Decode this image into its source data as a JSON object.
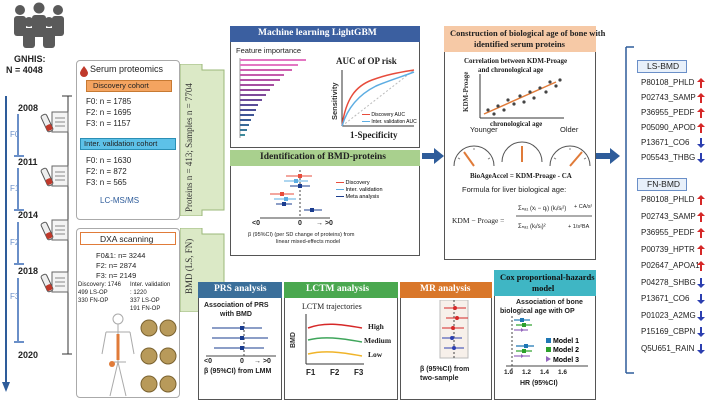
{
  "gnhis": {
    "title": "GNHIS:",
    "n": "N = 4048"
  },
  "timeline": {
    "years": [
      "2008",
      "2011",
      "2014",
      "2018",
      "2020"
    ],
    "phases": [
      "F0",
      "F1",
      "F2",
      "F3"
    ]
  },
  "serum": {
    "title": "Serum proteomics",
    "discovery_label": "Discovery cohort",
    "discovery_counts": [
      "F0: n = 1785",
      "F2: n = 1695",
      "F3: n = 1157"
    ],
    "validation_label": "Inter. validation cohort",
    "validation_counts": [
      "F0: n = 1630",
      "F2: n = 872",
      "F3: n = 565"
    ],
    "method": "LC-MS/MS"
  },
  "dxa": {
    "title": "DXA scanning",
    "counts": [
      "F0&1: n= 3244",
      "F2: n= 2874",
      "F3: n= 2149"
    ],
    "discovery": [
      "Discovery: 1746",
      "499 LS-OP",
      "330 FN-OP"
    ],
    "validation": [
      "Inter. validation",
      ": 1220",
      "337 LS-OP",
      "191 FN-OP"
    ]
  },
  "arrows": {
    "proteins": "Proteins n = 413; Samples n = 7704",
    "bmd": "BMD (LS, FN)"
  },
  "ml": {
    "title": "Machine learning LightGBM",
    "feature_importance": "Feature importance",
    "auc_title": "AUC of OP risk",
    "ylabel": "Sensitivity",
    "xlabel": "1-Specificity",
    "legend": [
      "Discovery AUC",
      "Inter. validation AUC"
    ]
  },
  "bmd": {
    "title": "Identification of BMD-proteins",
    "legend": [
      "Discovery",
      "Inter. validation",
      "Meta analysis"
    ],
    "axis": [
      "<0",
      "0",
      "→ >0"
    ],
    "caption": [
      "β (95%CI) (per SD change of proteins) from",
      "linear mixed-effects model"
    ]
  },
  "prs": {
    "title": "PRS analysis",
    "subtitle": [
      "Association of PRS",
      "with BMD"
    ],
    "axis": [
      "<0",
      "0",
      "→ >0"
    ],
    "caption": "β (95%CI) from LMM"
  },
  "lctm": {
    "title": "LCTM analysis",
    "subtitle": "LCTM trajectories",
    "ylabel": "BMD",
    "levels": [
      "High",
      "Medium",
      "Low"
    ],
    "x": [
      "F1",
      "F2",
      "F3"
    ]
  },
  "mr": {
    "title": "MR analysis",
    "caption": [
      "β (95%CI) from",
      "two-sample"
    ]
  },
  "kdm": {
    "title": [
      "Construction of biological age of bone with",
      "identified serum proteins"
    ],
    "corr_title": [
      "Correlation between KDM-Proage",
      "and chronological age"
    ],
    "ylabel": "KDM-Proage",
    "xlabel": "chronological age",
    "younger": "Younger",
    "older": "Older",
    "accel": "BioAgeAccel = KDM-Proage - CA",
    "formula_label": "Formula for liver biological age:",
    "kdm_eq": "KDM − Proage ="
  },
  "cox": {
    "title": [
      "Cox proportional-hazards",
      "model"
    ],
    "subtitle": [
      "Association of bone",
      "biological age with OP"
    ],
    "models": [
      "Model 1",
      "Model 2",
      "Model 3"
    ],
    "ticks": [
      "1.0",
      "1.2",
      "1.4",
      "1.6"
    ],
    "xlabel": "HR (95%CI)"
  },
  "ls_bmd": {
    "title": "LS-BMD",
    "genes": [
      "P80108_PHLD",
      "P02743_SAMP",
      "P36955_PEDF",
      "P05090_APOD",
      "P13671_CO6",
      "P05543_THBG"
    ],
    "directions": [
      "up",
      "up",
      "up",
      "up",
      "down",
      "down"
    ]
  },
  "fn_bmd": {
    "title": "FN-BMD",
    "genes": [
      "P80108_PHLD",
      "P02743_SAMP",
      "P36955_PEDF",
      "P00739_HPTR",
      "P02647_APOA1",
      "P04278_SHBG",
      "P13671_CO6",
      "P01023_A2MG",
      "P15169_CBPN",
      "Q5U651_RAIN"
    ],
    "directions": [
      "up",
      "up",
      "up",
      "up",
      "up",
      "down",
      "down",
      "down",
      "down",
      "down"
    ]
  },
  "colors": {
    "ml_header": "#3b5fa0",
    "bmd_header": "#a9d08e",
    "prs_header": "#3b6f9a",
    "lctm_header": "#4aa84f",
    "mr_header": "#d9772a",
    "cox_header": "#3fb6c4",
    "kdm_header": "#f6c9a6",
    "arrow": "#2e5c9a",
    "up": "#d62828",
    "down": "#2c3fb0"
  }
}
